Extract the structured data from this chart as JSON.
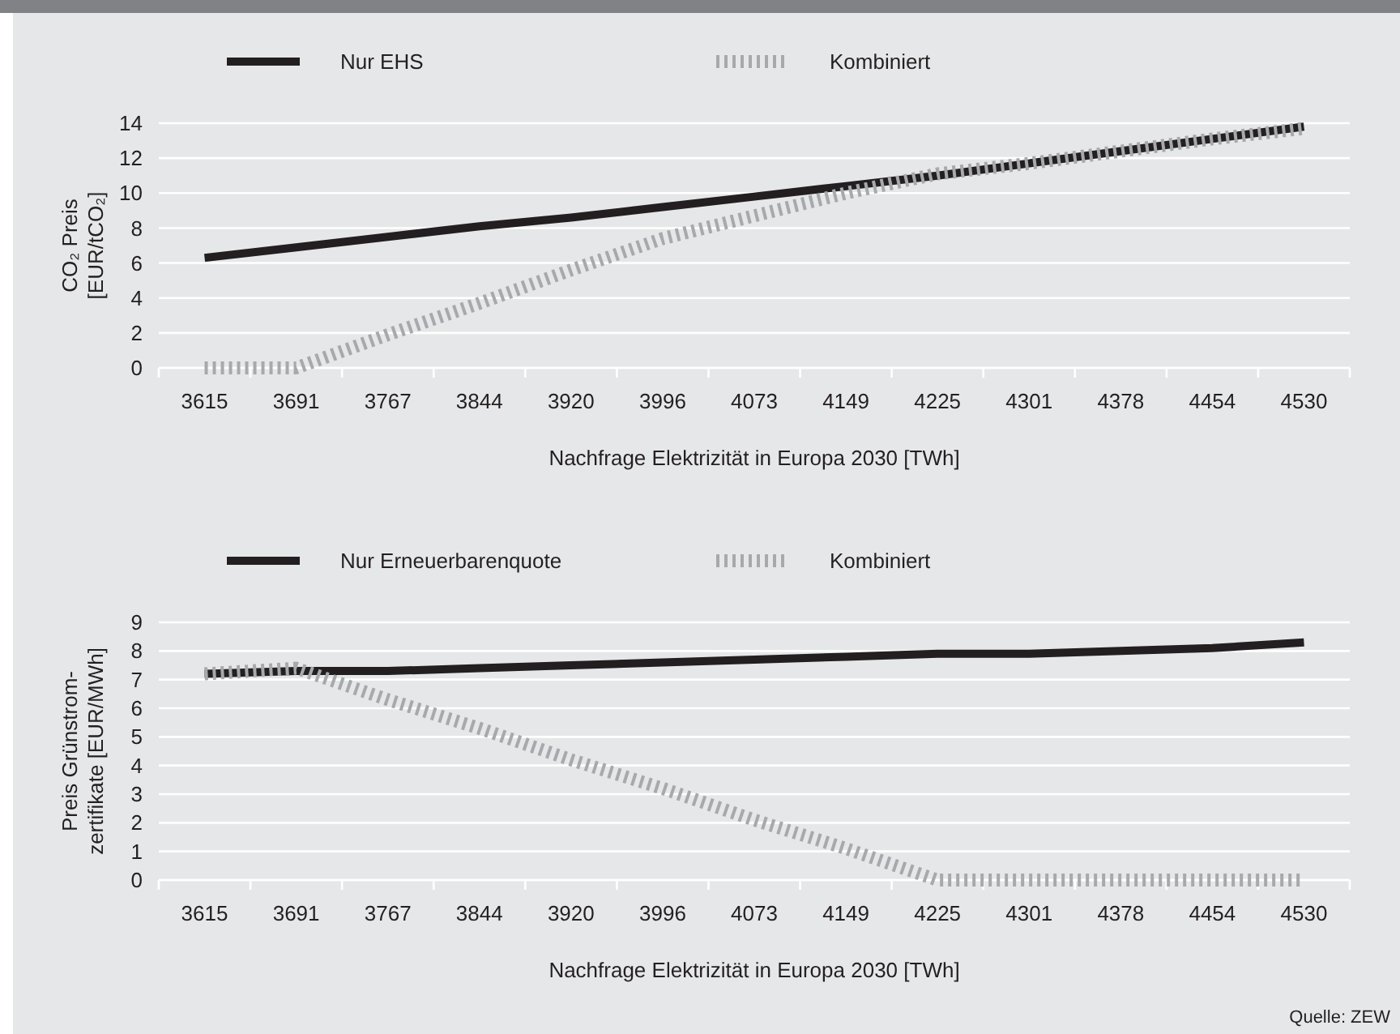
{
  "chart_data": [
    {
      "type": "line",
      "categories": [
        "3615",
        "3691",
        "3767",
        "3844",
        "3920",
        "3996",
        "4073",
        "4149",
        "4225",
        "4301",
        "4378",
        "4454",
        "4530"
      ],
      "xlabel": "Nachfrage Elektrizität in Europa 2030 [TWh]",
      "ylabel": "CO₂ Preis [EUR/tCO₂]",
      "ylim": [
        0,
        14
      ],
      "yticks": [
        0,
        2,
        4,
        6,
        8,
        10,
        12,
        14
      ],
      "grid": "y",
      "legend": "top",
      "marker": "none",
      "series": [
        {
          "name": "Nur EHS",
          "color": "#231f20",
          "line_style": "solid",
          "values": [
            6.3,
            6.9,
            7.5,
            8.1,
            8.6,
            9.2,
            9.8,
            10.4,
            11.0,
            11.7,
            12.4,
            13.1,
            13.8
          ]
        },
        {
          "name": "Kombiniert",
          "color": "#a7a9ac",
          "line_style": "dashed",
          "values": [
            0,
            0,
            1.9,
            3.7,
            5.6,
            7.4,
            8.7,
            10.0,
            11.1,
            11.7,
            12.4,
            13.1,
            13.7
          ]
        }
      ]
    },
    {
      "type": "line",
      "categories": [
        "3615",
        "3691",
        "3767",
        "3844",
        "3920",
        "3996",
        "4073",
        "4149",
        "4225",
        "4301",
        "4378",
        "4454",
        "4530"
      ],
      "xlabel": "Nachfrage Elektrizität in Europa 2030 [TWh]",
      "ylabel": "Preis Grünstrom-zertifikate [EUR/MWh]",
      "ylim": [
        0,
        9
      ],
      "yticks": [
        0,
        1,
        2,
        3,
        4,
        5,
        6,
        7,
        8,
        9
      ],
      "grid": "y",
      "legend": "top",
      "marker": "none",
      "annotations": [
        "Quelle: ZEW"
      ],
      "series": [
        {
          "name": "Nur Erneuerbarenquote",
          "color": "#231f20",
          "line_style": "solid",
          "values": [
            7.2,
            7.3,
            7.3,
            7.4,
            7.5,
            7.6,
            7.7,
            7.8,
            7.9,
            7.9,
            8.0,
            8.1,
            8.3
          ]
        },
        {
          "name": "Kombiniert",
          "color": "#a7a9ac",
          "line_style": "dashed",
          "values": [
            7.2,
            7.4,
            6.3,
            5.3,
            4.2,
            3.2,
            2.1,
            1.1,
            0,
            0,
            0,
            0,
            0
          ]
        }
      ]
    }
  ]
}
